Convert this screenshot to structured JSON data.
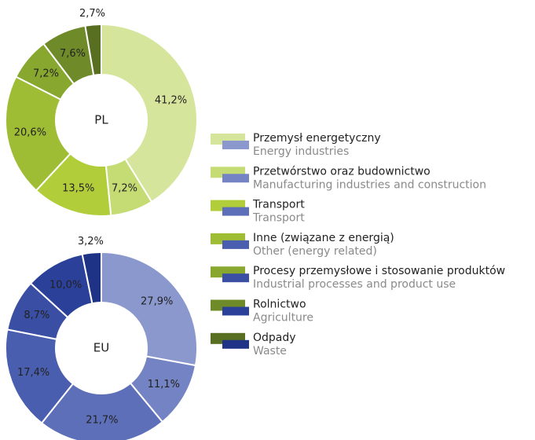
{
  "chart_data": [
    {
      "type": "donut",
      "title": "PL",
      "values": [
        41.2,
        7.2,
        13.5,
        20.6,
        7.2,
        7.6,
        2.7
      ],
      "value_labels": [
        "41,2%",
        "7,2%",
        "13,5%",
        "20,6%",
        "7,2%",
        "7,6%",
        "2,7%"
      ],
      "colors": [
        "#d5e59c",
        "#c5dc74",
        "#b1ce3a",
        "#9fbd34",
        "#88a72e",
        "#6f8b29",
        "#586f22"
      ]
    },
    {
      "type": "donut",
      "title": "EU",
      "values": [
        27.9,
        11.1,
        21.7,
        17.4,
        8.7,
        10.0,
        3.2
      ],
      "value_labels": [
        "27,9%",
        "11,1%",
        "21,7%",
        "17,4%",
        "8,7%",
        "10,0%",
        "3,2%"
      ],
      "colors": [
        "#8a98cd",
        "#7483c3",
        "#5c6fb8",
        "#4a5eaf",
        "#3a4fa3",
        "#2b4199",
        "#1e3386"
      ]
    }
  ],
  "legend": [
    {
      "label": "Przemysł energetyczny",
      "translation": "Energy industries"
    },
    {
      "label": "Przetwórstwo oraz budownictwo",
      "translation": "Manufacturing industries and construction"
    },
    {
      "label": "Transport",
      "translation": "Transport"
    },
    {
      "label": "Inne (związane z energią)",
      "translation": "Other (energy related)"
    },
    {
      "label": "Procesy przemysłowe i stosowanie produktów",
      "translation": "Industrial processes and product use"
    },
    {
      "label": "Rolnictwo",
      "translation": "Agriculture"
    },
    {
      "label": "Odpady",
      "translation": "Waste"
    }
  ]
}
